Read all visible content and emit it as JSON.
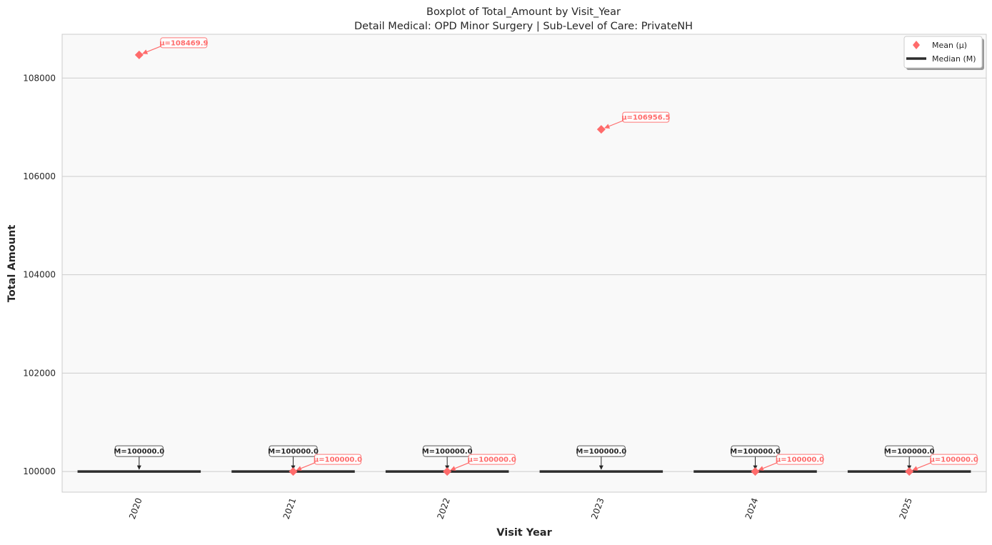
{
  "chart_data": {
    "type": "box",
    "title": "Boxplot of Total_Amount by Visit_Year",
    "subtitle": "Detail Medical: OPD Minor Surgery | Sub-Level of Care: PrivateNH",
    "xlabel": "Visit Year",
    "ylabel": "Total Amount",
    "categories": [
      "2020",
      "2021",
      "2022",
      "2023",
      "2024",
      "2025"
    ],
    "medians": [
      100000.0,
      100000.0,
      100000.0,
      100000.0,
      100000.0,
      100000.0
    ],
    "means": [
      108469.9,
      100000.0,
      100000.0,
      106956.5,
      100000.0,
      100000.0
    ],
    "median_labels": [
      "M=100000.0",
      "M=100000.0",
      "M=100000.0",
      "M=100000.0",
      "M=100000.0",
      "M=100000.0"
    ],
    "mean_labels": [
      "μ=108469.9",
      "μ=100000.0",
      "μ=100000.0",
      "μ=106956.5",
      "μ=100000.0",
      "μ=100000.0"
    ],
    "yticks": [
      100000,
      102000,
      104000,
      106000,
      108000
    ],
    "ytick_labels": [
      "100000",
      "102000",
      "104000",
      "106000",
      "108000"
    ],
    "ylim": [
      99580,
      108890
    ],
    "grid": "horizontal",
    "legend": {
      "position": "top-right",
      "entries": [
        "Mean (μ)",
        "Median (M)"
      ]
    },
    "colors": {
      "mean": "#ff6b6b",
      "median": "#2d2d2d",
      "plot_background": "#f9f9f9",
      "grid": "#cccccc"
    }
  }
}
